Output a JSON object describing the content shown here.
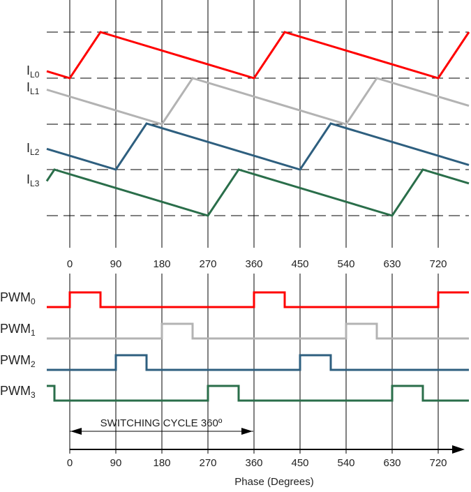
{
  "colors": {
    "phase0": "#ff0000",
    "phase1": "#b3b3b3",
    "phase2": "#2e5f7f",
    "phase3": "#2a6e4a",
    "grid": "#000000"
  },
  "phase_ticks": [
    "0",
    "90",
    "180",
    "270",
    "360",
    "450",
    "540",
    "630",
    "720"
  ],
  "phase_range": [
    -45,
    780
  ],
  "duty_degrees": 60,
  "current_waveforms": [
    {
      "label_main": "I",
      "label_sub": "L0",
      "phase_offset": 0,
      "color_key": "phase0"
    },
    {
      "label_main": "I",
      "label_sub": "L1",
      "phase_offset": 180,
      "color_key": "phase1"
    },
    {
      "label_main": "I",
      "label_sub": "L2",
      "phase_offset": 90,
      "color_key": "phase2"
    },
    {
      "label_main": "I",
      "label_sub": "L3",
      "phase_offset": 270,
      "color_key": "phase3"
    }
  ],
  "pwm_signals": [
    {
      "label_main": "PWM",
      "label_sub": "0",
      "phase_offset": 0,
      "color_key": "phase0"
    },
    {
      "label_main": "PWM",
      "label_sub": "1",
      "phase_offset": 180,
      "color_key": "phase1"
    },
    {
      "label_main": "PWM",
      "label_sub": "2",
      "phase_offset": 90,
      "color_key": "phase2"
    },
    {
      "label_main": "PWM",
      "label_sub": "3",
      "phase_offset": 270,
      "color_key": "phase3"
    }
  ],
  "switching_cycle_label": "SWITCHING CYCLE 360º",
  "x_axis_label": "Phase  (Degrees)"
}
